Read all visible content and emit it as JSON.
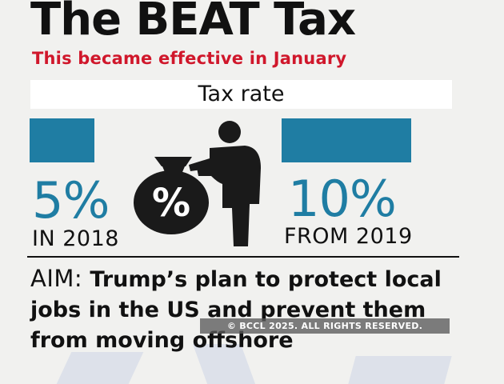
{
  "title": "The BEAT Tax",
  "subtitle": "This became effective in January",
  "chart_data": {
    "type": "bar",
    "title": "Tax rate",
    "categories": [
      "IN 2018",
      "FROM 2019"
    ],
    "values": [
      5,
      10
    ],
    "value_labels": [
      "5%",
      "10%"
    ],
    "unit": "%",
    "bar_color": "#1f7da3"
  },
  "icon": {
    "name": "person-with-percent-money-bag-icon",
    "symbol": "%"
  },
  "aim": {
    "label": "AIM:",
    "text": "Trump’s plan to protect local jobs in the US and prevent them from moving offshore"
  },
  "copyright": "© BCCL 2025. ALL RIGHTS RESERVED."
}
